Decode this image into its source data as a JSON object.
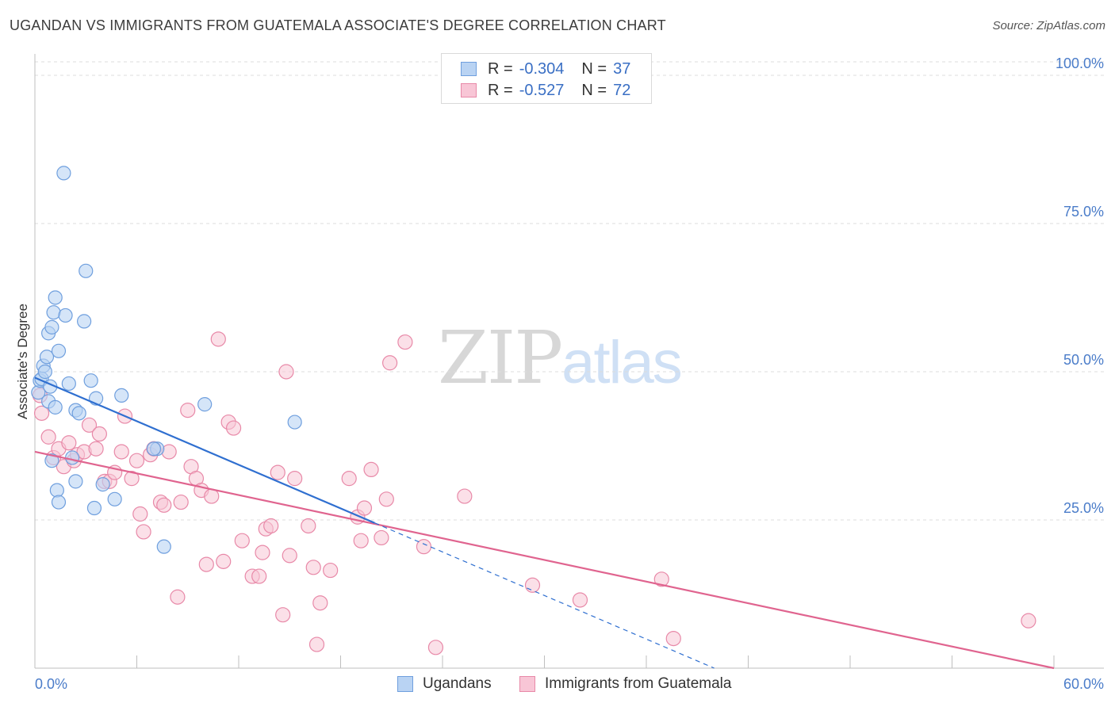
{
  "header": {
    "title": "UGANDAN VS IMMIGRANTS FROM GUATEMALA ASSOCIATE'S DEGREE CORRELATION CHART",
    "source": "Source: ZipAtlas.com"
  },
  "watermark": {
    "zip": "ZIP",
    "atlas": "atlas"
  },
  "legend_top": {
    "rows": [
      {
        "r_label": "R =",
        "r_value": "-0.304",
        "n_label": "N =",
        "n_value": "37"
      },
      {
        "r_label": "R =",
        "r_value": "-0.527",
        "n_label": "N =",
        "n_value": "72"
      }
    ]
  },
  "legend_bottom": {
    "items": [
      {
        "label": "Ugandans"
      },
      {
        "label": "Immigrants from Guatemala"
      }
    ]
  },
  "colors": {
    "ugandans_fill": "#b9d3f3",
    "ugandans_stroke": "#6f9fde",
    "ugandans_line": "#2f6fd0",
    "guatemala_fill": "#f8c6d6",
    "guatemala_stroke": "#e889a8",
    "guatemala_line": "#e0648f",
    "grid": "#dcdcdc",
    "tick_text": "#4a7cc9"
  },
  "chart_data": {
    "type": "scatter",
    "title": "UGANDAN VS IMMIGRANTS FROM GUATEMALA ASSOCIATE'S DEGREE CORRELATION CHART",
    "xlabel": "",
    "ylabel": "Associate's Degree",
    "xlim": [
      0,
      60
    ],
    "ylim": [
      0,
      102
    ],
    "x_tick_labels": [
      "0.0%",
      "60.0%"
    ],
    "y_ticks": [
      {
        "value": 25,
        "label": "25.0%"
      },
      {
        "value": 50,
        "label": "50.0%"
      },
      {
        "value": 75,
        "label": "75.0%"
      },
      {
        "value": 100,
        "label": "100.0%"
      }
    ],
    "grid": true,
    "legend_position": "top-center",
    "series": [
      {
        "name": "Ugandans",
        "r": -0.304,
        "n": 37,
        "trend": {
          "x0": 0,
          "y0": 49.0,
          "x1": 20.0,
          "y1": 24.5,
          "dash_to_x": 40.0,
          "dash_to_y": 0
        },
        "points": [
          [
            0.2,
            46.5
          ],
          [
            0.3,
            48.5
          ],
          [
            0.4,
            48.8
          ],
          [
            0.5,
            51.0
          ],
          [
            0.6,
            50.0
          ],
          [
            0.7,
            52.5
          ],
          [
            0.8,
            56.5
          ],
          [
            0.8,
            45.0
          ],
          [
            0.9,
            47.5
          ],
          [
            1.0,
            57.5
          ],
          [
            1.0,
            35.0
          ],
          [
            1.1,
            60.0
          ],
          [
            1.2,
            44.0
          ],
          [
            1.2,
            62.5
          ],
          [
            1.3,
            30.0
          ],
          [
            1.4,
            28.0
          ],
          [
            1.4,
            53.5
          ],
          [
            1.7,
            83.5
          ],
          [
            1.8,
            59.5
          ],
          [
            2.0,
            48.0
          ],
          [
            2.2,
            35.5
          ],
          [
            2.4,
            31.5
          ],
          [
            2.4,
            43.5
          ],
          [
            2.6,
            43.0
          ],
          [
            2.9,
            58.5
          ],
          [
            3.0,
            67.0
          ],
          [
            3.3,
            48.5
          ],
          [
            3.5,
            27.0
          ],
          [
            3.6,
            45.5
          ],
          [
            4.0,
            31.0
          ],
          [
            4.7,
            28.5
          ],
          [
            5.1,
            46.0
          ],
          [
            7.2,
            37.0
          ],
          [
            7.6,
            20.5
          ],
          [
            10.0,
            44.5
          ],
          [
            15.3,
            41.5
          ],
          [
            7.0,
            37.0
          ]
        ]
      },
      {
        "name": "Immigrants from Guatemala",
        "r": -0.527,
        "n": 72,
        "trend": {
          "x0": 0,
          "y0": 36.5,
          "x1": 60.0,
          "y1": 0.0
        },
        "points": [
          [
            0.3,
            46.0
          ],
          [
            0.4,
            43.0
          ],
          [
            0.8,
            39.0
          ],
          [
            1.1,
            35.5
          ],
          [
            1.4,
            37.0
          ],
          [
            1.7,
            34.0
          ],
          [
            2.0,
            38.0
          ],
          [
            2.3,
            35.0
          ],
          [
            2.5,
            36.0
          ],
          [
            2.9,
            36.5
          ],
          [
            3.2,
            41.0
          ],
          [
            3.6,
            37.0
          ],
          [
            3.8,
            39.5
          ],
          [
            4.1,
            31.5
          ],
          [
            4.4,
            31.5
          ],
          [
            4.7,
            33.0
          ],
          [
            5.1,
            36.5
          ],
          [
            5.3,
            42.5
          ],
          [
            5.7,
            32.0
          ],
          [
            6.0,
            35.0
          ],
          [
            6.2,
            26.0
          ],
          [
            6.4,
            23.0
          ],
          [
            6.8,
            36.0
          ],
          [
            7.0,
            37.0
          ],
          [
            7.4,
            28.0
          ],
          [
            7.6,
            27.5
          ],
          [
            7.9,
            36.5
          ],
          [
            8.4,
            12.0
          ],
          [
            8.6,
            28.0
          ],
          [
            9.0,
            43.5
          ],
          [
            9.2,
            34.0
          ],
          [
            9.5,
            32.0
          ],
          [
            9.8,
            30.0
          ],
          [
            10.1,
            17.5
          ],
          [
            10.4,
            29.0
          ],
          [
            10.8,
            55.5
          ],
          [
            11.1,
            18.0
          ],
          [
            11.4,
            41.5
          ],
          [
            11.7,
            40.5
          ],
          [
            12.2,
            21.5
          ],
          [
            12.8,
            15.5
          ],
          [
            13.2,
            15.5
          ],
          [
            13.4,
            19.5
          ],
          [
            13.6,
            23.5
          ],
          [
            13.9,
            24.0
          ],
          [
            14.3,
            33.0
          ],
          [
            14.6,
            9.0
          ],
          [
            14.8,
            50.0
          ],
          [
            15.0,
            19.0
          ],
          [
            15.3,
            32.0
          ],
          [
            16.1,
            24.0
          ],
          [
            16.4,
            17.0
          ],
          [
            16.6,
            4.0
          ],
          [
            16.8,
            11.0
          ],
          [
            17.4,
            16.5
          ],
          [
            18.5,
            32.0
          ],
          [
            19.0,
            25.5
          ],
          [
            19.2,
            21.5
          ],
          [
            19.4,
            27.0
          ],
          [
            19.8,
            33.5
          ],
          [
            20.4,
            22.0
          ],
          [
            20.7,
            28.5
          ],
          [
            20.9,
            51.5
          ],
          [
            21.8,
            55.0
          ],
          [
            22.9,
            20.5
          ],
          [
            23.6,
            3.5
          ],
          [
            25.3,
            29.0
          ],
          [
            29.3,
            14.0
          ],
          [
            32.1,
            11.5
          ],
          [
            36.9,
            15.0
          ],
          [
            37.6,
            5.0
          ],
          [
            58.5,
            8.0
          ]
        ]
      }
    ]
  }
}
